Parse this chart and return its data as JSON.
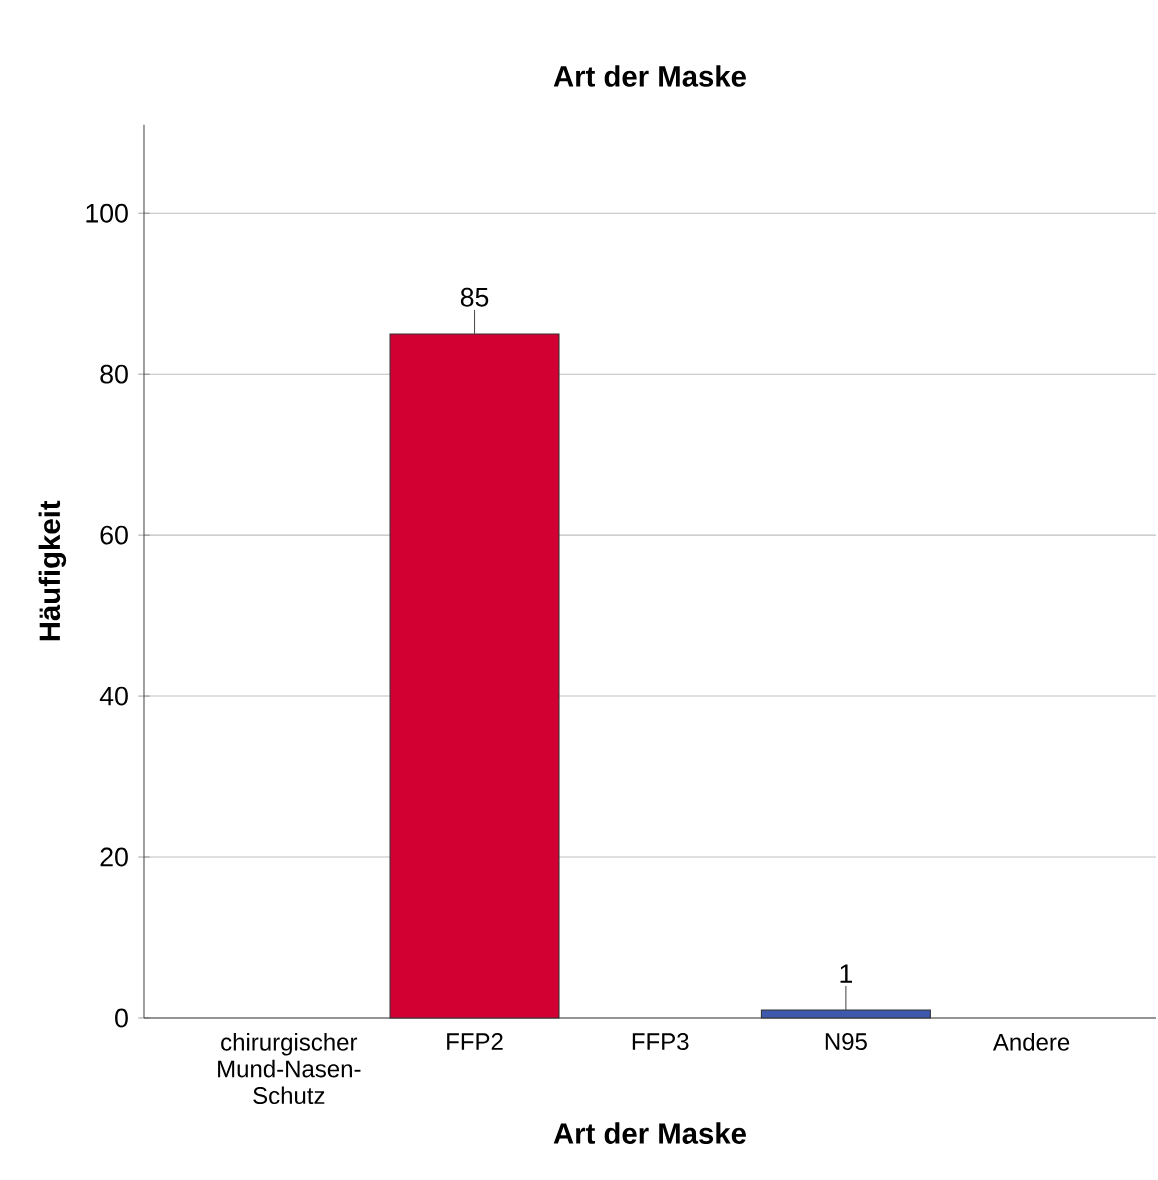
{
  "chart_data": {
    "type": "bar",
    "title": "Art der Maske",
    "xlabel": "Art der Maske",
    "ylabel": "Häufigkeit",
    "categories": [
      "chirurgischer Mund-Nasen-Schutz",
      "FFP2",
      "FFP3",
      "N95",
      "Andere"
    ],
    "values": [
      null,
      85,
      null,
      1,
      null
    ],
    "colors": [
      "#d20032",
      "#d20032",
      "#d20032",
      "#3e58ac",
      "#d20032"
    ],
    "value_labels": [
      null,
      "85",
      null,
      "1",
      null
    ],
    "ylim": [
      0,
      111
    ],
    "yticks": [
      0,
      20,
      40,
      60,
      80,
      100
    ],
    "grid": "y"
  }
}
